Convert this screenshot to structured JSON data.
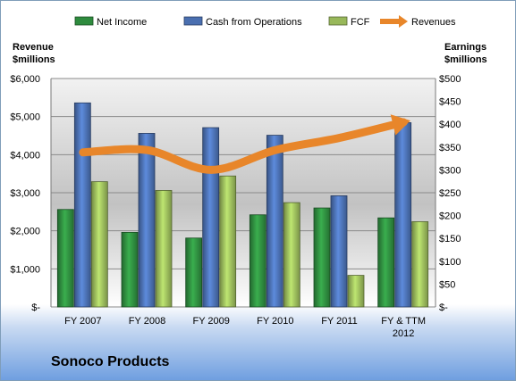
{
  "company": "Sonoco Products",
  "chart_data": {
    "type": "bar",
    "categories": [
      "FY 2007",
      "FY 2008",
      "FY 2009",
      "FY 2010",
      "FY 2011",
      "FY & TTM 2012"
    ],
    "category_lines": [
      [
        "FY 2007"
      ],
      [
        "FY 2008"
      ],
      [
        "FY 2009"
      ],
      [
        "FY 2010"
      ],
      [
        "FY 2011"
      ],
      [
        "FY & TTM",
        "2012"
      ]
    ],
    "left_axis": {
      "title_lines": [
        "Revenue",
        "$millions"
      ],
      "range": [
        0,
        6000
      ],
      "ticks": [
        0,
        1000,
        2000,
        3000,
        4000,
        5000,
        6000
      ],
      "tick_labels": [
        "$-",
        "$1,000",
        "$2,000",
        "$3,000",
        "$4,000",
        "$5,000",
        "$6,000"
      ]
    },
    "right_axis": {
      "title_lines": [
        "Earnings",
        "$millions"
      ],
      "range": [
        0,
        500
      ],
      "ticks": [
        0,
        50,
        100,
        150,
        200,
        250,
        300,
        350,
        400,
        450,
        500
      ],
      "tick_labels": [
        "$-",
        "$50",
        "$100",
        "$150",
        "$200",
        "$250",
        "$300",
        "$350",
        "$400",
        "$450",
        "$500"
      ]
    },
    "series": [
      {
        "name": "Net Income",
        "kind": "bar",
        "axis": "left",
        "color": "#2e8b3e",
        "values": [
          2560,
          1960,
          1810,
          2420,
          2600,
          2340
        ]
      },
      {
        "name": "Cash from Operations",
        "kind": "bar",
        "axis": "left",
        "color": "#4a6fb0",
        "values": [
          5360,
          4560,
          4710,
          4510,
          2920,
          4840
        ]
      },
      {
        "name": "FCF",
        "kind": "bar",
        "axis": "left",
        "color": "#98b85a",
        "values": [
          3290,
          3060,
          3440,
          2740,
          830,
          2240
        ]
      },
      {
        "name": "Revenues",
        "kind": "line",
        "axis": "left",
        "color": "#e8862a",
        "values": [
          4060,
          4120,
          3600,
          4120,
          4440,
          4850
        ]
      }
    ],
    "grid": true,
    "legend_position": "top"
  }
}
